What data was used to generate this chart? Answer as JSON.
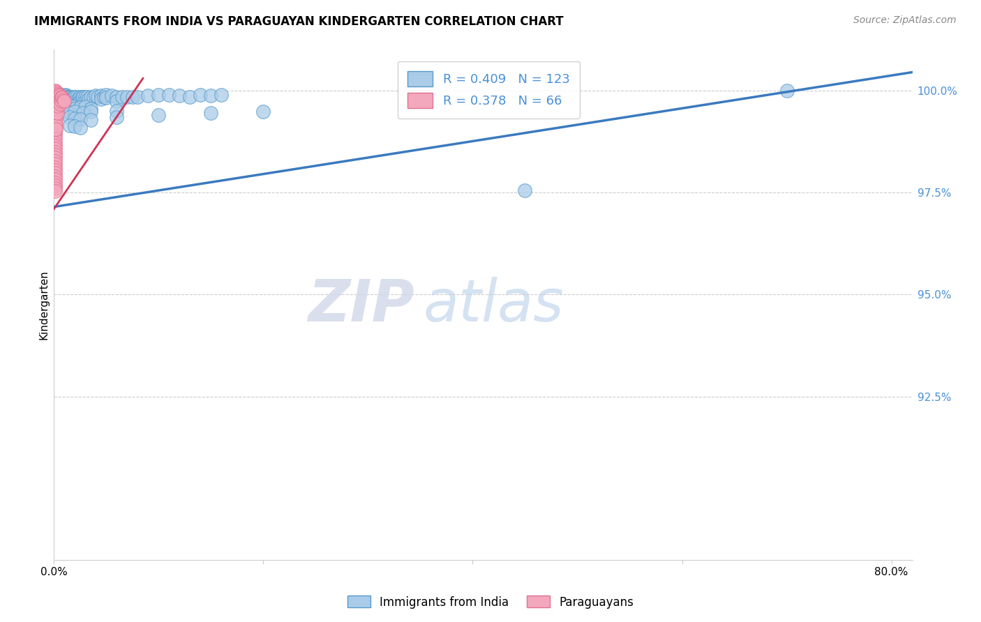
{
  "title": "IMMIGRANTS FROM INDIA VS PARAGUAYAN KINDERGARTEN CORRELATION CHART",
  "source": "Source: ZipAtlas.com",
  "ylabel": "Kindergarten",
  "watermark_zip": "ZIP",
  "watermark_atlas": "atlas",
  "blue_color": "#aacce8",
  "pink_color": "#f4a8be",
  "blue_edge_color": "#5599cc",
  "pink_edge_color": "#e07090",
  "blue_line_color": "#3a7abf",
  "pink_line_color": "#cc3355",
  "right_axis_color": "#4a90d9",
  "legend_india_r": "0.409",
  "legend_india_n": "123",
  "legend_paraguay_r": "0.378",
  "legend_paraguay_n": "66",
  "ytick_values": [
    1.0,
    0.975,
    0.95,
    0.925
  ],
  "ytick_labels": [
    "100.0%",
    "97.5%",
    "95.0%",
    "92.5%"
  ],
  "xtick_values": [
    0.0,
    0.2,
    0.4,
    0.6,
    0.8
  ],
  "xtick_labels": [
    "0.0%",
    "",
    "",
    "",
    "80.0%"
  ],
  "xlim": [
    0.0,
    0.82
  ],
  "ylim": [
    0.885,
    1.01
  ],
  "india_trendline_x": [
    0.0,
    0.82
  ],
  "india_trendline_y": [
    0.9715,
    1.0045
  ],
  "paraguay_trendline_x": [
    0.0,
    0.085
  ],
  "paraguay_trendline_y": [
    0.971,
    1.003
  ],
  "india_scatter": [
    [
      0.001,
      0.999
    ],
    [
      0.001,
      0.9985
    ],
    [
      0.001,
      0.998
    ],
    [
      0.001,
      0.9975
    ],
    [
      0.002,
      0.999
    ],
    [
      0.002,
      0.9985
    ],
    [
      0.002,
      0.9975
    ],
    [
      0.002,
      0.9965
    ],
    [
      0.003,
      0.999
    ],
    [
      0.003,
      0.9985
    ],
    [
      0.003,
      0.9975
    ],
    [
      0.003,
      0.997
    ],
    [
      0.004,
      0.999
    ],
    [
      0.004,
      0.9985
    ],
    [
      0.004,
      0.9975
    ],
    [
      0.004,
      0.9965
    ],
    [
      0.005,
      0.999
    ],
    [
      0.005,
      0.9985
    ],
    [
      0.005,
      0.9975
    ],
    [
      0.005,
      0.996
    ],
    [
      0.006,
      0.999
    ],
    [
      0.006,
      0.998
    ],
    [
      0.006,
      0.9975
    ],
    [
      0.006,
      0.9965
    ],
    [
      0.007,
      0.999
    ],
    [
      0.007,
      0.9985
    ],
    [
      0.007,
      0.9975
    ],
    [
      0.007,
      0.9965
    ],
    [
      0.008,
      0.9988
    ],
    [
      0.008,
      0.9982
    ],
    [
      0.008,
      0.9972
    ],
    [
      0.009,
      0.9988
    ],
    [
      0.009,
      0.9978
    ],
    [
      0.009,
      0.9968
    ],
    [
      0.01,
      0.9988
    ],
    [
      0.01,
      0.9975
    ],
    [
      0.01,
      0.9965
    ],
    [
      0.011,
      0.999
    ],
    [
      0.011,
      0.998
    ],
    [
      0.011,
      0.997
    ],
    [
      0.012,
      0.9988
    ],
    [
      0.012,
      0.9978
    ],
    [
      0.013,
      0.9985
    ],
    [
      0.013,
      0.9975
    ],
    [
      0.014,
      0.9985
    ],
    [
      0.014,
      0.9975
    ],
    [
      0.015,
      0.9985
    ],
    [
      0.015,
      0.9975
    ],
    [
      0.015,
      0.9965
    ],
    [
      0.016,
      0.9985
    ],
    [
      0.016,
      0.9975
    ],
    [
      0.017,
      0.9982
    ],
    [
      0.017,
      0.9972
    ],
    [
      0.018,
      0.998
    ],
    [
      0.018,
      0.997
    ],
    [
      0.019,
      0.9985
    ],
    [
      0.019,
      0.9975
    ],
    [
      0.02,
      0.9985
    ],
    [
      0.02,
      0.9975
    ],
    [
      0.02,
      0.9965
    ],
    [
      0.022,
      0.9985
    ],
    [
      0.022,
      0.9975
    ],
    [
      0.024,
      0.9982
    ],
    [
      0.024,
      0.9972
    ],
    [
      0.025,
      0.9985
    ],
    [
      0.025,
      0.9975
    ],
    [
      0.027,
      0.9985
    ],
    [
      0.027,
      0.9975
    ],
    [
      0.028,
      0.9985
    ],
    [
      0.03,
      0.9985
    ],
    [
      0.03,
      0.9975
    ],
    [
      0.032,
      0.9985
    ],
    [
      0.033,
      0.998
    ],
    [
      0.035,
      0.9985
    ],
    [
      0.038,
      0.9985
    ],
    [
      0.04,
      0.9988
    ],
    [
      0.042,
      0.9985
    ],
    [
      0.045,
      0.9988
    ],
    [
      0.045,
      0.998
    ],
    [
      0.048,
      0.9985
    ],
    [
      0.05,
      0.999
    ],
    [
      0.05,
      0.9982
    ],
    [
      0.055,
      0.9988
    ],
    [
      0.06,
      0.9985
    ],
    [
      0.06,
      0.9975
    ],
    [
      0.065,
      0.9985
    ],
    [
      0.07,
      0.9985
    ],
    [
      0.075,
      0.9985
    ],
    [
      0.08,
      0.9985
    ],
    [
      0.09,
      0.9988
    ],
    [
      0.1,
      0.999
    ],
    [
      0.11,
      0.999
    ],
    [
      0.12,
      0.9988
    ],
    [
      0.13,
      0.9985
    ],
    [
      0.14,
      0.999
    ],
    [
      0.15,
      0.9988
    ],
    [
      0.16,
      0.999
    ],
    [
      0.01,
      0.9965
    ],
    [
      0.012,
      0.996
    ],
    [
      0.015,
      0.9958
    ],
    [
      0.018,
      0.996
    ],
    [
      0.02,
      0.9955
    ],
    [
      0.025,
      0.9958
    ],
    [
      0.03,
      0.996
    ],
    [
      0.035,
      0.9955
    ],
    [
      0.012,
      0.995
    ],
    [
      0.015,
      0.9945
    ],
    [
      0.02,
      0.9948
    ],
    [
      0.028,
      0.9945
    ],
    [
      0.035,
      0.9948
    ],
    [
      0.06,
      0.995
    ],
    [
      0.015,
      0.9935
    ],
    [
      0.02,
      0.9932
    ],
    [
      0.025,
      0.993
    ],
    [
      0.035,
      0.9928
    ],
    [
      0.06,
      0.9935
    ],
    [
      0.1,
      0.994
    ],
    [
      0.15,
      0.9945
    ],
    [
      0.2,
      0.9948
    ],
    [
      0.015,
      0.9915
    ],
    [
      0.02,
      0.9912
    ],
    [
      0.025,
      0.991
    ],
    [
      0.45,
      0.9755
    ],
    [
      0.7,
      1.0
    ]
  ],
  "paraguay_scatter": [
    [
      0.001,
      1.0
    ],
    [
      0.001,
      0.9992
    ],
    [
      0.001,
      0.9985
    ],
    [
      0.001,
      0.9978
    ],
    [
      0.001,
      0.997
    ],
    [
      0.001,
      0.9962
    ],
    [
      0.001,
      0.9955
    ],
    [
      0.001,
      0.9948
    ],
    [
      0.001,
      0.994
    ],
    [
      0.001,
      0.9932
    ],
    [
      0.001,
      0.9925
    ],
    [
      0.001,
      0.9918
    ],
    [
      0.001,
      0.991
    ],
    [
      0.001,
      0.9902
    ],
    [
      0.001,
      0.9895
    ],
    [
      0.001,
      0.9888
    ],
    [
      0.001,
      0.988
    ],
    [
      0.001,
      0.9872
    ],
    [
      0.001,
      0.9865
    ],
    [
      0.001,
      0.9858
    ],
    [
      0.001,
      0.985
    ],
    [
      0.001,
      0.9842
    ],
    [
      0.001,
      0.9835
    ],
    [
      0.001,
      0.9828
    ],
    [
      0.001,
      0.982
    ],
    [
      0.001,
      0.9812
    ],
    [
      0.001,
      0.9805
    ],
    [
      0.001,
      0.9798
    ],
    [
      0.001,
      0.979
    ],
    [
      0.001,
      0.9783
    ],
    [
      0.001,
      0.9775
    ],
    [
      0.001,
      0.9768
    ],
    [
      0.001,
      0.976
    ],
    [
      0.001,
      0.9753
    ],
    [
      0.002,
      0.9998
    ],
    [
      0.002,
      0.999
    ],
    [
      0.002,
      0.9982
    ],
    [
      0.002,
      0.9975
    ],
    [
      0.002,
      0.9965
    ],
    [
      0.002,
      0.9955
    ],
    [
      0.002,
      0.9945
    ],
    [
      0.002,
      0.9935
    ],
    [
      0.002,
      0.9925
    ],
    [
      0.002,
      0.9915
    ],
    [
      0.002,
      0.9905
    ],
    [
      0.003,
      0.9995
    ],
    [
      0.003,
      0.9985
    ],
    [
      0.003,
      0.9975
    ],
    [
      0.003,
      0.9965
    ],
    [
      0.003,
      0.9955
    ],
    [
      0.003,
      0.9945
    ],
    [
      0.004,
      0.9992
    ],
    [
      0.004,
      0.9982
    ],
    [
      0.004,
      0.9972
    ],
    [
      0.004,
      0.9962
    ],
    [
      0.005,
      0.999
    ],
    [
      0.005,
      0.998
    ],
    [
      0.005,
      0.997
    ],
    [
      0.006,
      0.9988
    ],
    [
      0.006,
      0.9978
    ],
    [
      0.006,
      0.9968
    ],
    [
      0.007,
      0.9985
    ],
    [
      0.007,
      0.9975
    ],
    [
      0.008,
      0.9982
    ],
    [
      0.009,
      0.9978
    ],
    [
      0.01,
      0.9975
    ]
  ]
}
